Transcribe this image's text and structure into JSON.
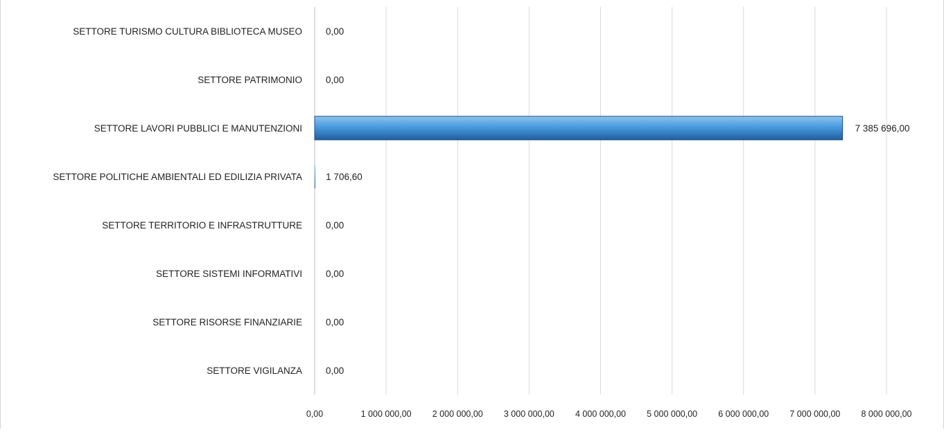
{
  "chart_data": {
    "type": "bar",
    "orientation": "horizontal",
    "categories": [
      "SETTORE TURISMO CULTURA BIBLIOTECA MUSEO",
      "SETTORE PATRIMONIO",
      "SETTORE LAVORI PUBBLICI E MANUTENZIONI",
      "SETTORE POLITICHE AMBIENTALI ED EDILIZIA PRIVATA",
      "SETTORE TERRITORIO E INFRASTRUTTURE",
      "SETTORE SISTEMI  INFORMATIVI",
      "SETTORE RISORSE FINANZIARIE",
      "SETTORE VIGILANZA"
    ],
    "values": [
      0,
      0,
      7385696,
      1706.6,
      0,
      0,
      0,
      0
    ],
    "data_labels": [
      "0,00",
      "0,00",
      "7 385 696,00",
      "1 706,60",
      "0,00",
      "0,00",
      "0,00",
      "0,00"
    ],
    "x_ticks": [
      0,
      1000000,
      2000000,
      3000000,
      4000000,
      5000000,
      6000000,
      7000000,
      8000000
    ],
    "x_tick_labels": [
      "0,00",
      "1 000 000,00",
      "2 000 000,00",
      "3 000 000,00",
      "4 000 000,00",
      "5 000 000,00",
      "6 000 000,00",
      "7 000 000,00",
      "8 000 000,00"
    ],
    "xlim": [
      0,
      8000000
    ],
    "grid": true,
    "legend": "none",
    "bar_color": "#3a8fd4"
  }
}
